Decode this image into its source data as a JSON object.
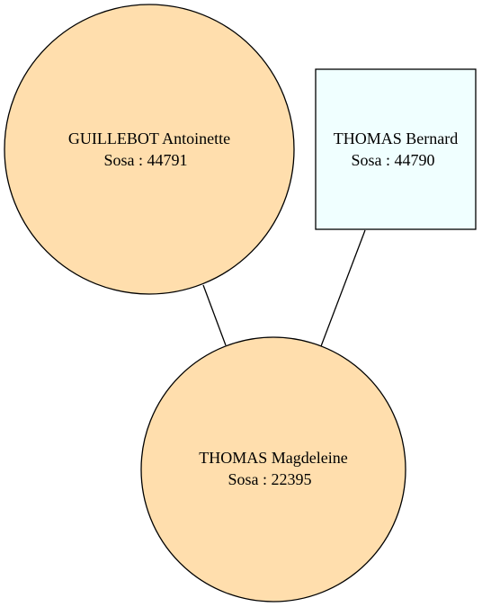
{
  "graph": {
    "nodes": {
      "mother": {
        "name": "GUILLEBOT Antoinette",
        "sosa": "Sosa : 44791",
        "shape": "circle",
        "sex": "female",
        "fill": "#FFDEAD"
      },
      "father": {
        "name": "THOMAS Bernard",
        "sosa": "Sosa : 44790",
        "shape": "box",
        "sex": "male",
        "fill": "#F0FFFF"
      },
      "child": {
        "name": "THOMAS Magdeleine",
        "sosa": "Sosa : 22395",
        "shape": "circle",
        "sex": "female",
        "fill": "#FFDEAD"
      }
    },
    "edges": [
      {
        "from": "mother",
        "to": "child"
      },
      {
        "from": "father",
        "to": "child"
      }
    ],
    "stroke_color": "#000000",
    "background": "#FFFFFF"
  }
}
